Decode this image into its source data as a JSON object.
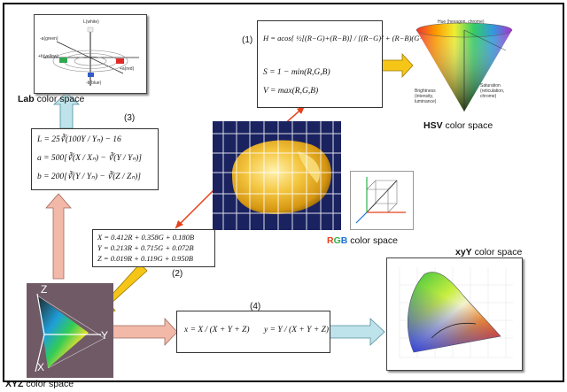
{
  "title": "",
  "spaces": {
    "lab": {
      "prefix": "Lab",
      "suffix": " color space"
    },
    "hsv": {
      "prefix": "HSV",
      "suffix": " color space"
    },
    "rgb": {
      "r": "R",
      "g": "G",
      "b": "B",
      "suffix": " color space"
    },
    "xyy": {
      "prefix": "xyY",
      "suffix": " color space"
    },
    "xyz": {
      "prefix": "XYZ",
      "suffix": " color space"
    }
  },
  "steps": {
    "s1": "(1)",
    "s2": "(2)",
    "s3": "(3)",
    "s4": "(4)"
  },
  "equations": {
    "hsv": [
      "H = acos{ ½[(R−G)+(R−B)] / [(R−G)² + (R−B)(G−B)]^½ }",
      "S = 1 − min(R,G,B)",
      "V = max(R,G,B)"
    ],
    "lab": [
      "L = 25∛(100Y / Yₙ) − 16",
      "a = 500[∛(X / Xₙ) − ∛(Y / Yₙ)]",
      "b = 200[∛(Y / Yₙ) − ∛(Z / Zₙ)]"
    ],
    "xyz": [
      "X = 0.412R + 0.358G + 0.180B",
      "Y = 0.213R + 0.715G + 0.072B",
      "Z = 0.019R + 0.119G + 0.950B"
    ],
    "xyy": [
      "x = X / (X + Y + Z)",
      "y = Y / (X + Y + Z)"
    ]
  },
  "figures": {
    "lab_axes": {
      "top": "L(white)",
      "left_top": "-a(green)",
      "left": "+b(yellow)",
      "right": "+a(red)",
      "bottom": "-b(blue)"
    },
    "hsv_cone": {
      "top": "Hue (hexagon, chrome)",
      "left": "Brightness (intensity, luminance)",
      "right": "Saturation (reticulation, chrome)"
    },
    "xyz_axes": {
      "z": "Z",
      "y": "Y",
      "x": "X"
    }
  },
  "colors": {
    "arrow_yellow": "#f5c518",
    "arrow_pink": "#f2b8a8",
    "arrow_cyan": "#bfe3ea",
    "connector_red": "#e8401a",
    "rgb_r": "#e8401a",
    "rgb_g": "#2bb34a",
    "rgb_b": "#1e6fd9",
    "grid_bg": "#1a2360"
  }
}
